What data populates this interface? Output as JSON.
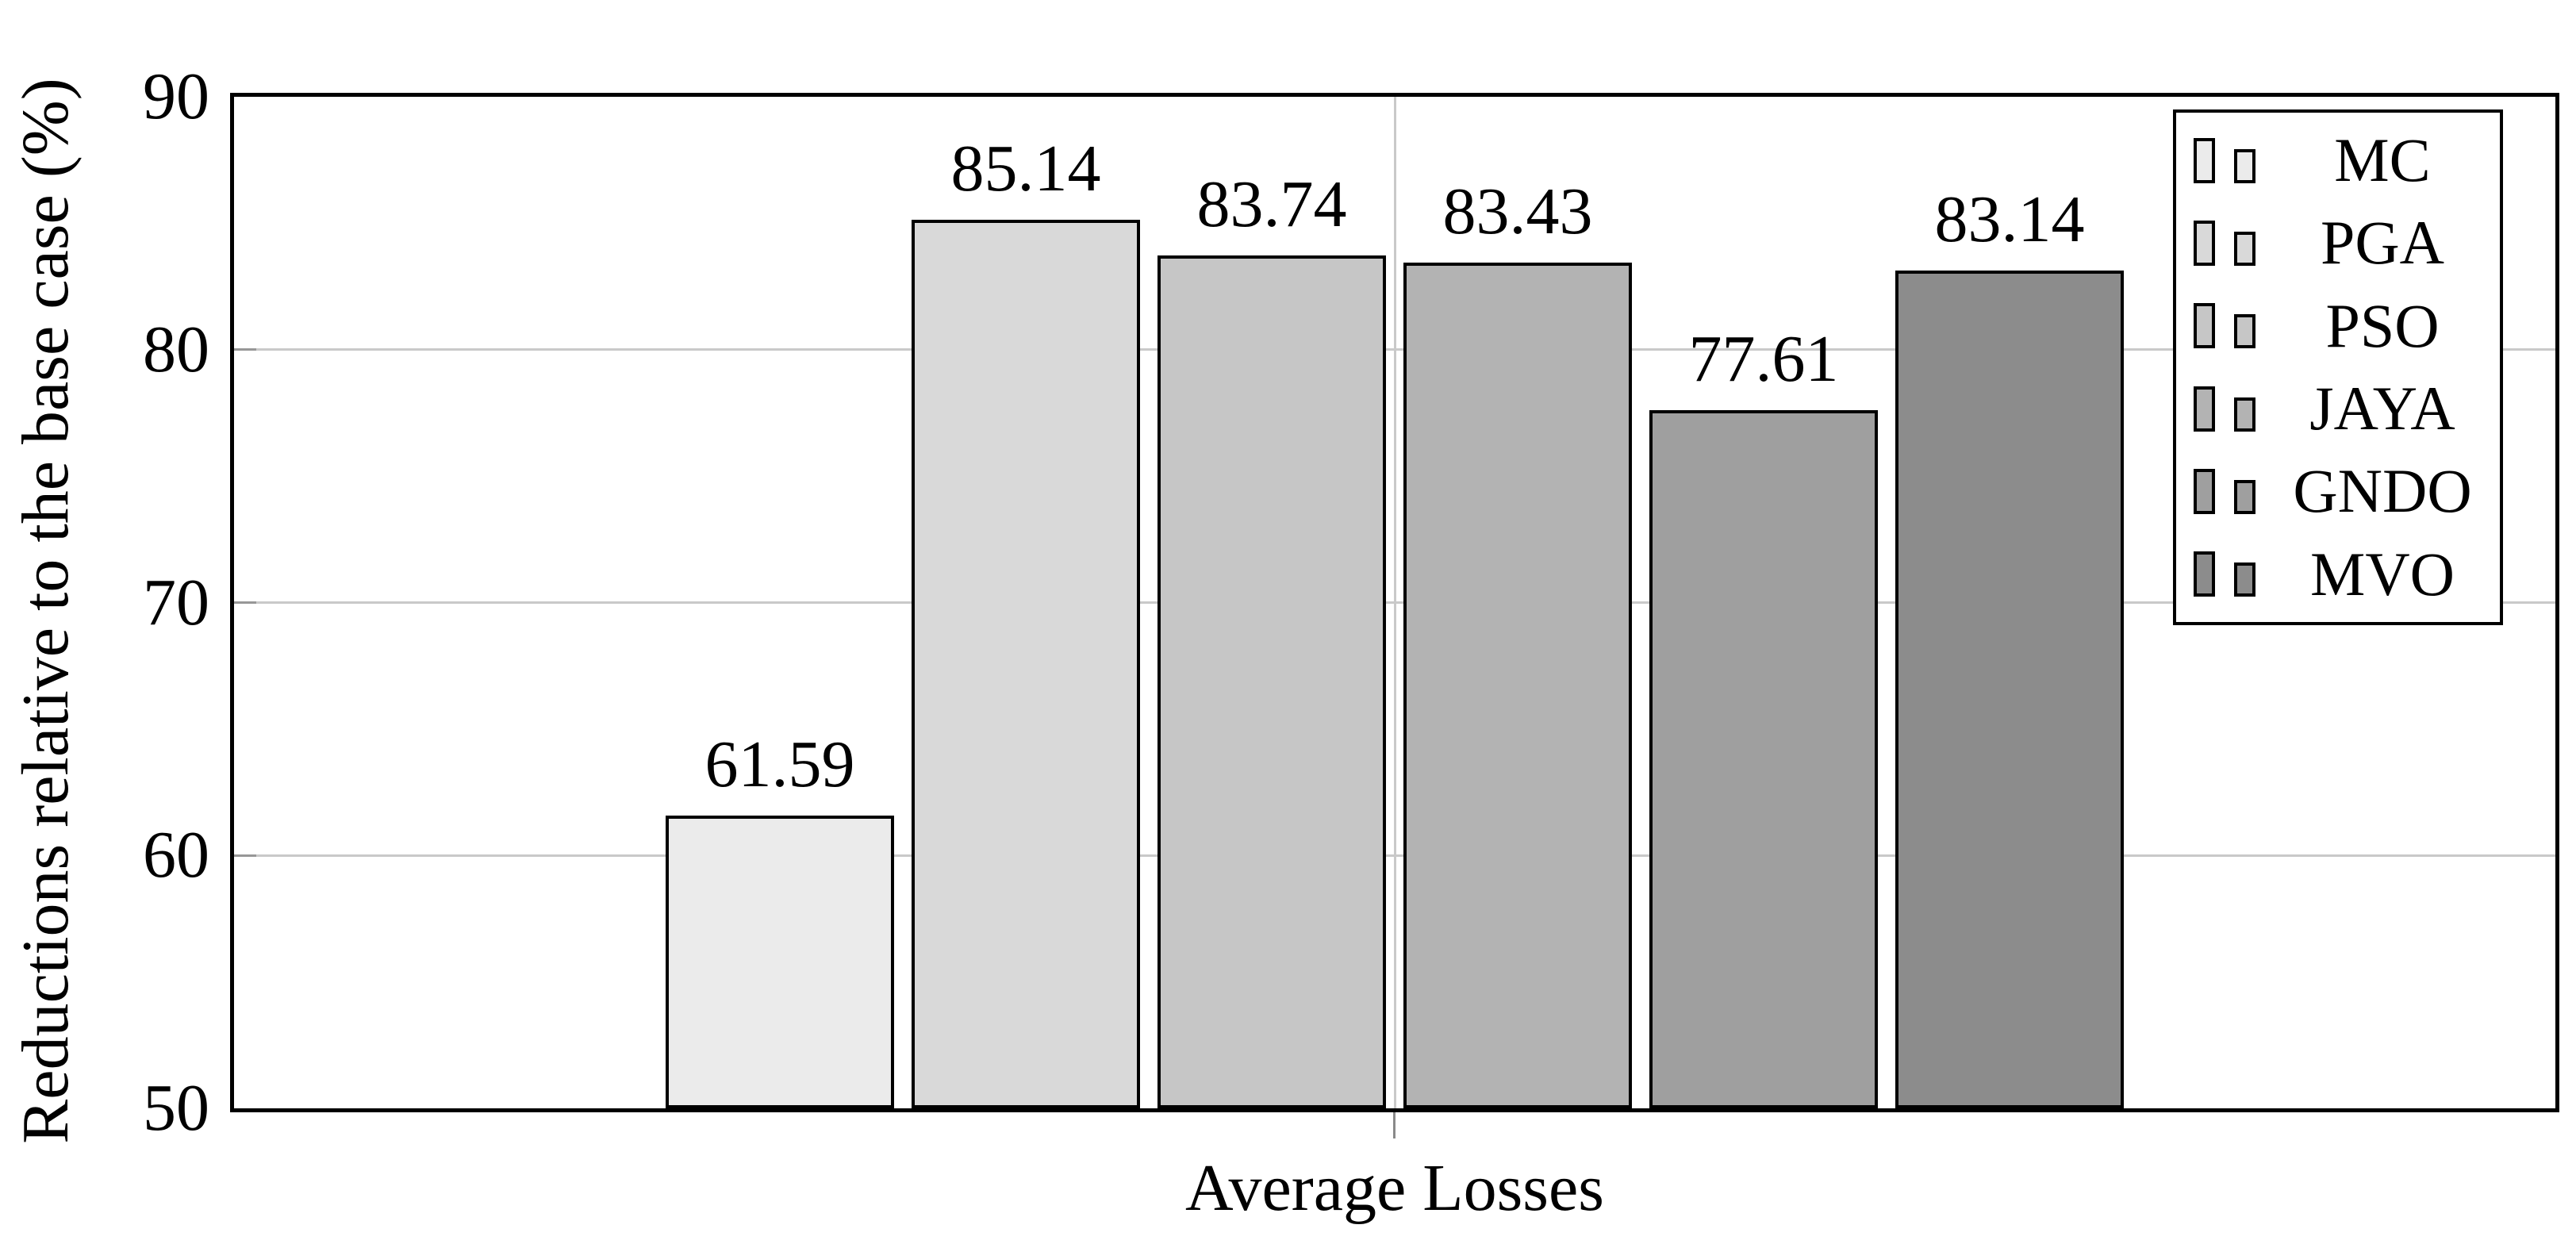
{
  "chart_data": {
    "type": "bar",
    "title": "",
    "xlabel": "Average Losses",
    "ylabel": "Reductions relative to the base case (%)",
    "categories": [
      "Average Losses"
    ],
    "series": [
      {
        "name": "MC",
        "value": 61.59,
        "label": "61.59",
        "color": "#ebebeb"
      },
      {
        "name": "PGA",
        "value": 85.14,
        "label": "85.14",
        "color": "#d9d9d9"
      },
      {
        "name": "PSO",
        "value": 83.74,
        "label": "83.74",
        "color": "#c6c6c6"
      },
      {
        "name": "JAYA",
        "value": 83.43,
        "label": "83.43",
        "color": "#b3b3b3"
      },
      {
        "name": "GNDO",
        "value": 77.61,
        "label": "77.61",
        "color": "#9f9f9f"
      },
      {
        "name": "MVO",
        "value": 83.14,
        "label": "83.14",
        "color": "#8c8c8c"
      }
    ],
    "ylim": [
      50,
      90
    ],
    "yticks": [
      50,
      60,
      70,
      80,
      90
    ],
    "gridline_values": [
      60,
      70,
      80
    ],
    "grid": true,
    "legend_position": "top-right",
    "bar_outline_color": "#000000",
    "grid_color": "#c9c9c9",
    "frame_color": "#000000"
  }
}
